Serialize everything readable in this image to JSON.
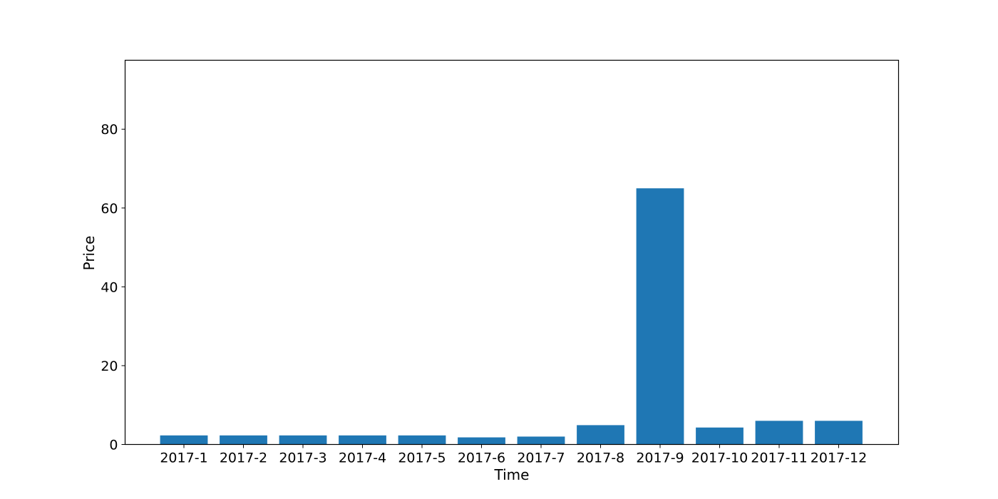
{
  "chart_data": {
    "type": "bar",
    "title": "",
    "xlabel": "Time",
    "ylabel": "Price",
    "categories": [
      "2017-1",
      "2017-2",
      "2017-3",
      "2017-4",
      "2017-5",
      "2017-6",
      "2017-7",
      "2017-8",
      "2017-9",
      "2017-10",
      "2017-11",
      "2017-12"
    ],
    "values": [
      2.3,
      2.3,
      2.3,
      2.3,
      2.3,
      1.8,
      2.0,
      4.9,
      65.0,
      4.3,
      6.0,
      6.0
    ],
    "ylim": [
      0,
      97.5
    ],
    "yticks": [
      0,
      20,
      40,
      60,
      80
    ],
    "grid": false,
    "legend": "none",
    "bar_color": "#1f77b4"
  }
}
